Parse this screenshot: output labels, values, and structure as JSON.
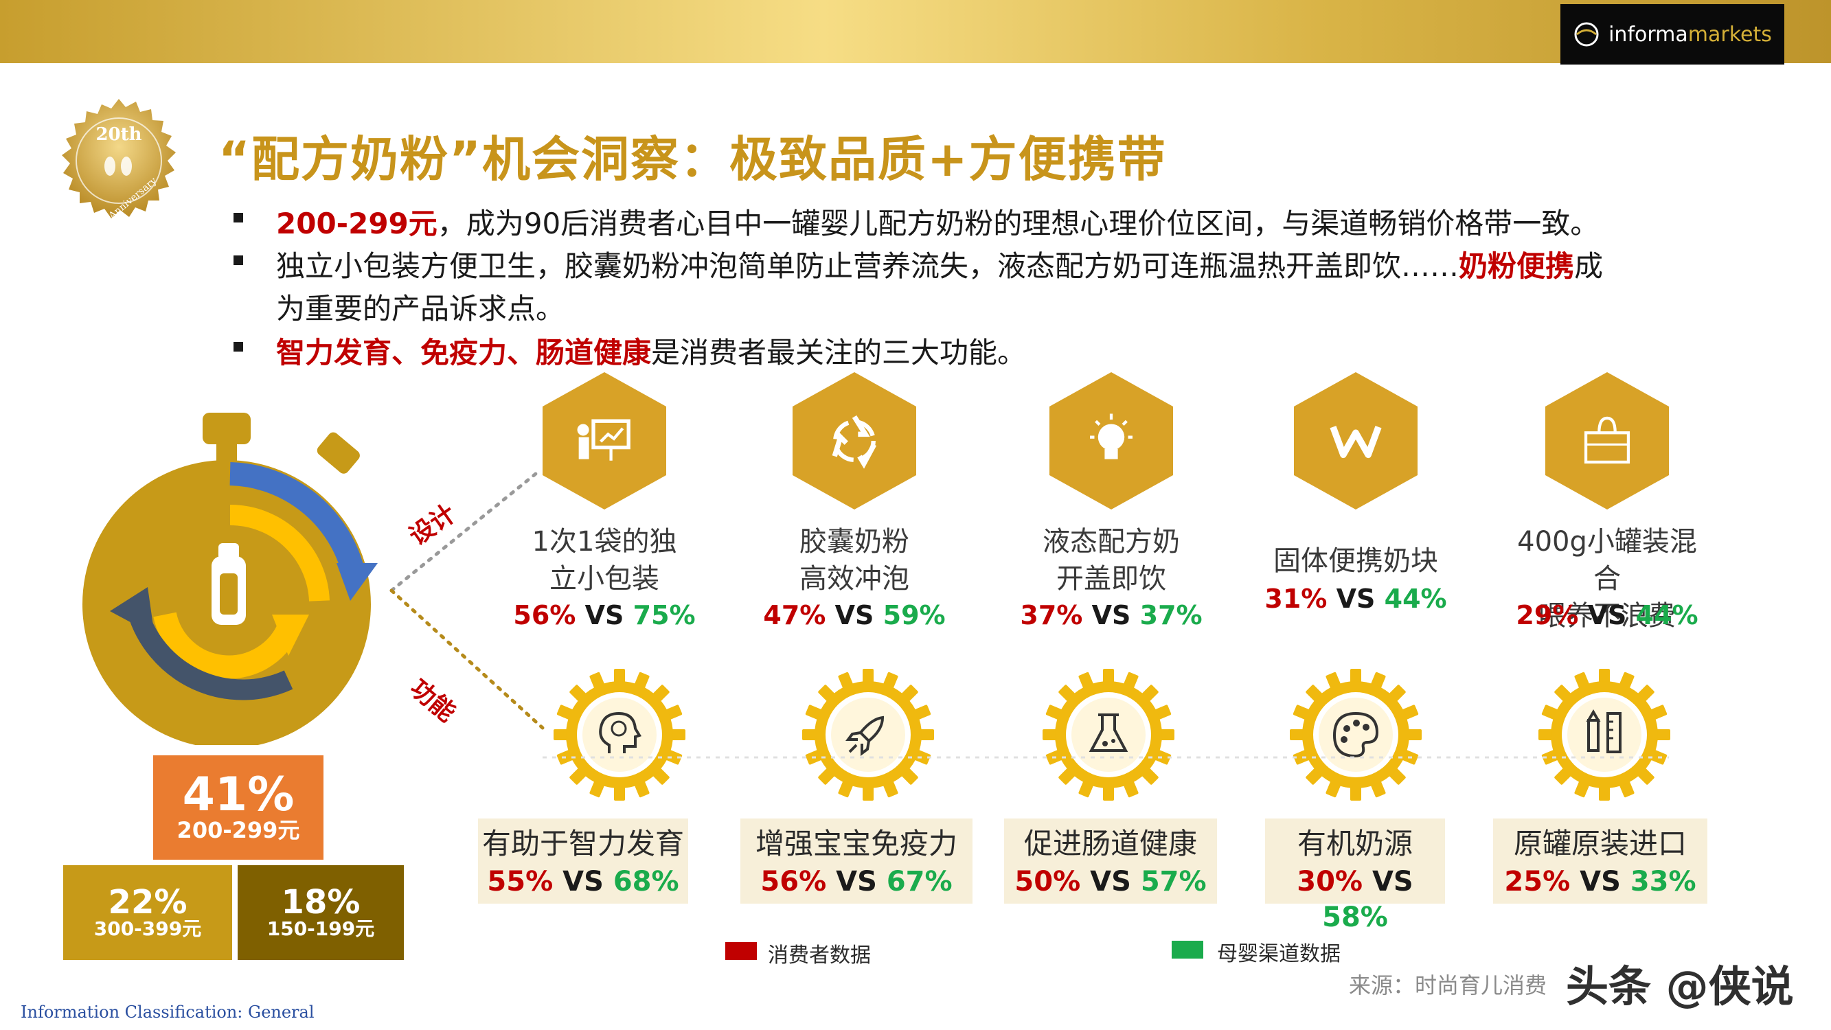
{
  "header": {
    "logo_text_1": "informa",
    "logo_text_2": "markets"
  },
  "badge": {
    "text": "20th",
    "sub": "Anniversary"
  },
  "title": "“配方奶粉”机会洞察：极致品质+方便携带",
  "bullets": [
    {
      "hl": "200-299元",
      "rest": "，成为90后消费者心目中一罐婴儿配方奶粉的理想心理价位区间，与渠道畅销价格带一致。"
    },
    {
      "pre": "独立小包装方便卫生，胶囊奶粉冲泡简单防止营养流失，液态配方奶可连瓶温热开盖即饮……",
      "hl": "奶粉便携",
      "post": "成",
      "line2": "为重要的产品诉求点。"
    },
    {
      "hl": "智力发育、免疫力、肠道健康",
      "rest": "是消费者最关注的三大功能。"
    }
  ],
  "price_blocks": [
    {
      "pct": "41%",
      "range": "200-299元",
      "color": "#ea7c30"
    },
    {
      "pct": "22%",
      "range": "300-399元",
      "color": "#c79a18"
    },
    {
      "pct": "18%",
      "range": "150-199元",
      "color": "#7f6000"
    }
  ],
  "side_labels": {
    "design": "设计",
    "function": "功能"
  },
  "design_items": [
    {
      "icon": "presentation-icon",
      "line1": "1次1袋的独",
      "line2": "立小包装",
      "consumer": "56%",
      "vs": "VS",
      "channel": "75%"
    },
    {
      "icon": "recycle-icon",
      "line1": "胶囊奶粉",
      "line2": "高效冲泡",
      "consumer": "47%",
      "vs": "VS",
      "channel": "59%"
    },
    {
      "icon": "lightbulb-icon",
      "line1": "液态配方奶",
      "line2": "开盖即饮",
      "consumer": "37%",
      "vs": "VS",
      "channel": "37%"
    },
    {
      "icon": "w-logo-icon",
      "line1": "固体便携奶块",
      "line2": "",
      "consumer": "31%",
      "vs": "VS",
      "channel": "44%"
    },
    {
      "icon": "shopping-bag-icon",
      "line1": "400g小罐装混合",
      "line2": "喂养不浪费",
      "consumer": "29%",
      "vs": "VS",
      "channel": "44%"
    }
  ],
  "function_items": [
    {
      "icon": "brain-head-icon",
      "label": "有助于智力发育",
      "consumer": "55%",
      "vs": "VS",
      "channel": "68%"
    },
    {
      "icon": "rocket-icon",
      "label": "增强宝宝免疫力",
      "consumer": "56%",
      "vs": "VS",
      "channel": "67%"
    },
    {
      "icon": "flask-icon",
      "label": "促进肠道健康",
      "consumer": "50%",
      "vs": "VS",
      "channel": "57%"
    },
    {
      "icon": "palette-icon",
      "label": "有机奶源",
      "consumer": "30%",
      "vs": "VS",
      "channel": "58%"
    },
    {
      "icon": "pencil-ruler-icon",
      "label": "原罐原装进口",
      "consumer": "25%",
      "vs": "VS",
      "channel": "33%"
    }
  ],
  "legend": [
    {
      "label": "消费者数据",
      "color": "#c00000"
    },
    {
      "label": "母婴渠道数据",
      "color": "#1aab4c"
    }
  ],
  "source": "来源：时尚育儿消费",
  "watermark": "头条 @侠说",
  "classification": "Information Classification: General"
}
